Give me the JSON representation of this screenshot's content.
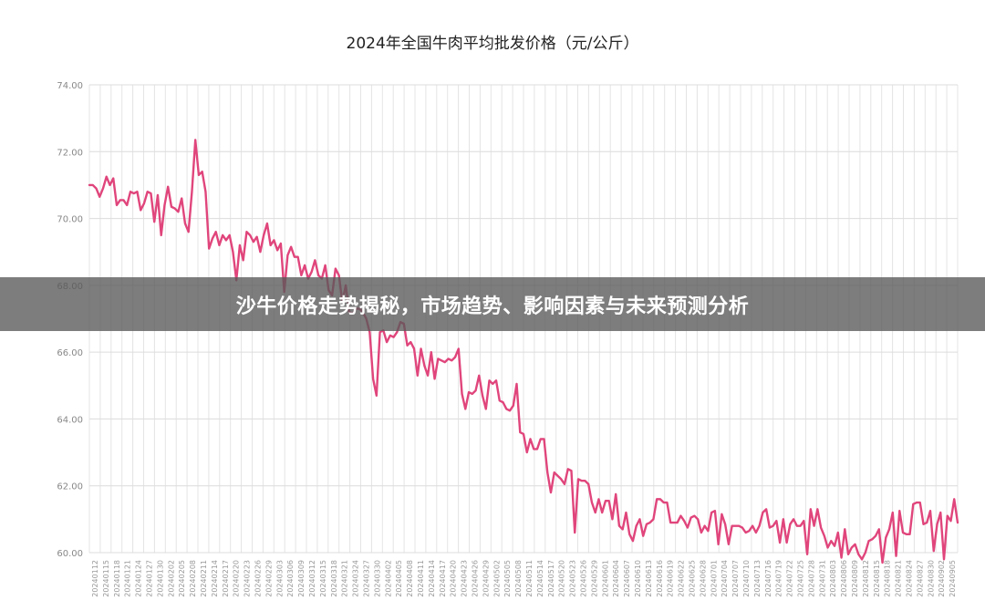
{
  "chart_data": {
    "type": "line",
    "title": "2024年全国牛肉平均批发价格（元/公斤）",
    "xlabel": "",
    "ylabel": "",
    "ylim": [
      60,
      74
    ],
    "yticks": [
      "60.00",
      "62.00",
      "64.00",
      "66.00",
      "68.00",
      "70.00",
      "72.00",
      "74.00"
    ],
    "xtick_labels": [
      "20240112",
      "20240115",
      "20240118",
      "20240121",
      "20240124",
      "20240127",
      "20240130",
      "20240202",
      "20240205",
      "20240208",
      "20240211",
      "20240214",
      "20240217",
      "20240220",
      "20240223",
      "20240226",
      "20240229",
      "20240303",
      "20240306",
      "20240309",
      "20240312",
      "20240315",
      "20240318",
      "20240321",
      "20240324",
      "20240327",
      "20240330",
      "20240402",
      "20240405",
      "20240408",
      "20240411",
      "20240414",
      "20240417",
      "20240420",
      "20240423",
      "20240426",
      "20240429",
      "20240502",
      "20240505",
      "20240508",
      "20240511",
      "20240514",
      "20240517",
      "20240520",
      "20240523",
      "20240526",
      "20240529",
      "20240601",
      "20240604",
      "20240607",
      "20240610",
      "20240613",
      "20240616",
      "20240619",
      "20240622",
      "20240625",
      "20240628",
      "20240701",
      "20240704",
      "20240707",
      "20240710",
      "20240713",
      "20240716",
      "20240719",
      "20240722",
      "20240725",
      "20240728",
      "20240731",
      "20240803",
      "20240806",
      "20240809",
      "20240812",
      "20240815",
      "20240818",
      "20240821",
      "20240824",
      "20240827",
      "20240830",
      "20240902",
      "20240905"
    ],
    "grid": true,
    "series": [
      {
        "color": "#e0457b",
        "values": [
          71.0,
          71.0,
          70.9,
          70.65,
          70.9,
          71.25,
          71.0,
          71.2,
          70.4,
          70.55,
          70.55,
          70.4,
          70.8,
          70.75,
          70.8,
          70.25,
          70.45,
          70.8,
          70.75,
          69.9,
          70.7,
          69.5,
          70.4,
          70.95,
          70.35,
          70.3,
          70.2,
          70.6,
          69.85,
          69.6,
          70.8,
          72.35,
          71.3,
          71.4,
          70.8,
          69.1,
          69.4,
          69.6,
          69.2,
          69.5,
          69.35,
          69.5,
          69.0,
          68.15,
          69.2,
          68.75,
          69.6,
          69.5,
          69.3,
          69.45,
          69.0,
          69.5,
          69.85,
          69.2,
          69.35,
          69.05,
          69.25,
          67.8,
          68.9,
          69.15,
          68.85,
          68.85,
          68.3,
          68.6,
          68.2,
          68.4,
          68.75,
          68.3,
          68.2,
          68.6,
          67.85,
          67.7,
          68.5,
          68.3,
          67.5,
          68.0,
          67.2,
          67.15,
          67.3,
          67.3,
          67.2,
          67.0,
          66.6,
          65.2,
          64.7,
          66.6,
          66.65,
          66.3,
          66.5,
          66.45,
          66.6,
          66.9,
          66.85,
          66.2,
          66.3,
          66.1,
          65.3,
          66.1,
          65.6,
          65.3,
          66.0,
          65.2,
          65.8,
          65.75,
          65.7,
          65.8,
          65.75,
          65.85,
          66.1,
          64.75,
          64.3,
          64.8,
          64.75,
          64.85,
          65.3,
          64.7,
          64.3,
          65.15,
          65.05,
          65.15,
          64.55,
          64.5,
          64.3,
          64.25,
          64.4,
          65.05,
          63.6,
          63.55,
          63.0,
          63.4,
          63.1,
          63.1,
          63.4,
          63.4,
          62.4,
          61.8,
          62.4,
          62.3,
          62.2,
          62.05,
          62.5,
          62.45,
          60.6,
          62.2,
          62.15,
          62.15,
          62.05,
          61.5,
          61.2,
          61.6,
          61.2,
          61.55,
          61.55,
          61.0,
          61.75,
          60.8,
          60.7,
          61.2,
          60.55,
          60.35,
          60.8,
          61.0,
          60.5,
          60.85,
          60.9,
          61.0,
          61.6,
          61.6,
          61.5,
          61.5,
          60.9,
          60.9,
          60.9,
          61.1,
          60.95,
          60.75,
          61.05,
          61.1,
          61.0,
          60.6,
          60.8,
          60.65,
          61.2,
          61.25,
          60.25,
          61.15,
          60.85,
          60.25,
          60.8,
          60.8,
          60.8,
          60.75,
          60.6,
          60.65,
          60.8,
          60.6,
          60.8,
          61.2,
          61.3,
          60.75,
          60.8,
          60.95,
          60.3,
          61.0,
          60.3,
          60.85,
          61.0,
          60.8,
          60.8,
          60.95,
          59.95,
          61.3,
          60.8,
          61.3,
          60.75,
          60.5,
          60.15,
          60.35,
          60.2,
          60.6,
          59.85,
          60.7,
          59.95,
          60.15,
          60.25,
          59.95,
          59.8,
          60.0,
          60.35,
          60.4,
          60.5,
          60.7,
          59.7,
          60.45,
          60.7,
          61.2,
          59.9,
          61.25,
          60.6,
          60.55,
          60.55,
          61.45,
          61.5,
          61.5,
          60.85,
          60.9,
          61.25,
          60.05,
          60.85,
          61.2,
          59.8,
          61.1,
          60.95,
          61.6,
          60.9
        ]
      }
    ]
  },
  "overlay": {
    "headline": "沙牛价格走势揭秘，市场趋势、影响因素与未来预测分析"
  }
}
